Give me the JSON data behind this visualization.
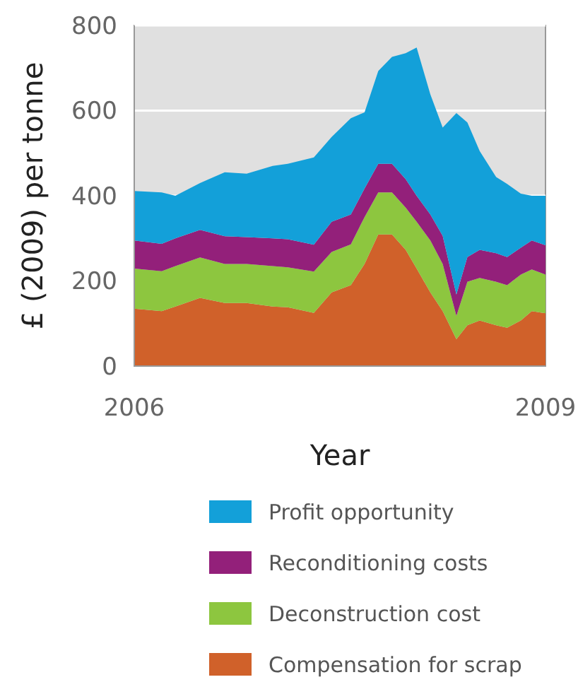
{
  "chart_data": {
    "type": "area",
    "stacked": true,
    "xlabel": "Year",
    "ylabel": "£ (2009) per tonne",
    "x": [
      2006.0,
      2006.2,
      2006.3,
      2006.48,
      2006.66,
      2006.82,
      2007.01,
      2007.12,
      2007.31,
      2007.44,
      2007.58,
      2007.68,
      2007.78,
      2007.88,
      2007.98,
      2008.06,
      2008.16,
      2008.25,
      2008.35,
      2008.43,
      2008.52,
      2008.64,
      2008.72,
      2008.82,
      2008.9,
      2009.0
    ],
    "series": [
      {
        "name": "Compensation for scrap",
        "color": "#d0612a",
        "values": [
          135,
          129,
          140,
          160,
          148,
          148,
          140,
          138,
          125,
          173,
          190,
          240,
          309,
          309,
          273,
          229,
          173,
          129,
          63,
          96,
          107,
          96,
          90,
          107,
          129,
          124
        ]
      },
      {
        "name": "Deconstruction cost",
        "color": "#8dc63f",
        "values": [
          94,
          94,
          95,
          95,
          92,
          92,
          95,
          94,
          97,
          95,
          96,
          110,
          99,
          99,
          99,
          110,
          122,
          111,
          55,
          102,
          100,
          102,
          100,
          108,
          98,
          91
        ]
      },
      {
        "name": "Reconditioning costs",
        "color": "#93207a",
        "values": [
          66,
          64,
          65,
          65,
          65,
          63,
          65,
          66,
          63,
          71,
          70,
          67,
          67,
          67,
          67,
          61,
          61,
          66,
          50,
          58,
          66,
          67,
          66,
          63,
          68,
          69
        ]
      },
      {
        "name": "Profit opportunity",
        "color": "#13a0d9",
        "values": [
          116,
          121,
          100,
          110,
          150,
          149,
          170,
          177,
          205,
          199,
          226,
          179,
          218,
          251,
          296,
          348,
          282,
          254,
          426,
          316,
          232,
          179,
          172,
          127,
          105,
          116
        ]
      }
    ],
    "xlim": [
      2006,
      2009
    ],
    "xticks": [
      2006,
      2009
    ],
    "ylim": [
      0,
      800
    ],
    "yticks": [
      0,
      200,
      400,
      600,
      800
    ],
    "grid": "y",
    "legend": "bottom"
  }
}
